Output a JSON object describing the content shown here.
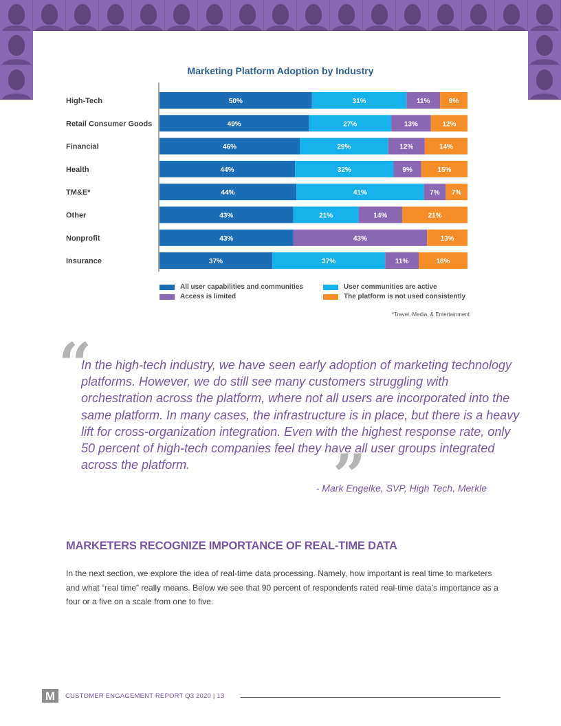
{
  "colors": {
    "all_users": "#1b6db6",
    "communities_active": "#16b1ea",
    "access_limited": "#8a67b3",
    "not_consistent": "#f48c27",
    "purple_text": "#7756a3",
    "title_blue": "#2e5f93"
  },
  "chart_data": {
    "type": "bar",
    "orientation": "horizontal-stacked-100",
    "title": "Marketing Platform Adoption by Industry",
    "categories": [
      "High-Tech",
      "Retail Consumer Goods",
      "Financial",
      "Health",
      "TM&E*",
      "Other",
      "Nonprofit",
      "Insurance"
    ],
    "series": [
      {
        "name": "All user capabilities and communities",
        "color": "#1b6db6",
        "values": [
          50,
          49,
          46,
          44,
          44,
          43,
          43,
          37
        ]
      },
      {
        "name": "User communities are active",
        "color": "#16b1ea",
        "values": [
          31,
          27,
          29,
          32,
          41,
          21,
          0,
          37
        ]
      },
      {
        "name": "Access is limited",
        "color": "#8a67b3",
        "values": [
          11,
          13,
          12,
          9,
          7,
          14,
          43,
          11
        ]
      },
      {
        "name": "The platform is not used consistently",
        "color": "#f48c27",
        "values": [
          9,
          12,
          14,
          15,
          7,
          21,
          13,
          16
        ]
      }
    ],
    "data_label_suffix": "%",
    "legend_placement": "bottom",
    "grid": false,
    "note": "*Travel, Media, & Entertainment"
  },
  "quote": {
    "open_mark": "“",
    "close_mark": "”",
    "text": "In the high-tech industry, we have seen early adoption of marketing technology platforms. However, we do still see many customers struggling with orchestration across the platform, where not all users are incorporated into the same platform. In many cases, the infrastructure is in place, but there is a heavy lift for cross-organization integration. Even with the highest response rate, only 50 percent of high-tech companies feel they have all user groups integrated across the platform.",
    "attribution": "- Mark Engelke, SVP, High Tech, Merkle"
  },
  "section": {
    "heading": "MARKETERS RECOGNIZE IMPORTANCE OF REAL-TIME DATA",
    "body": "In the next section, we explore the idea of real-time data processing. Namely, how important is real time to marketers and what “real time” really means. Below we see that 90 percent of respondents rated real-time data’s importance as a four or a five on a scale from one to five."
  },
  "footer": {
    "logo_letter": "M",
    "text": "CUSTOMER ENGAGEMENT REPORT Q3 2020 | 13"
  }
}
